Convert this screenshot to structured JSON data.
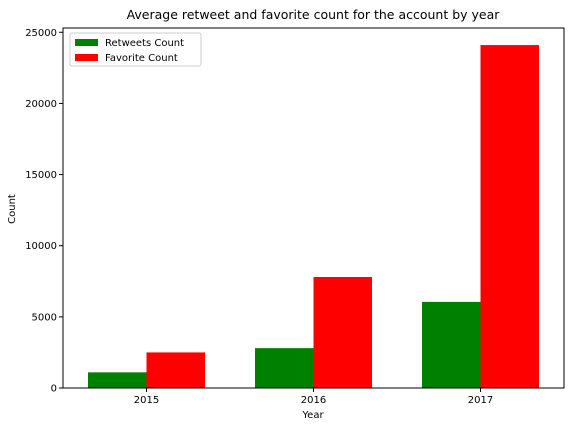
{
  "chart_data": {
    "type": "bar",
    "title": "Average retweet and favorite count for the account by year",
    "xlabel": "Year",
    "ylabel": "Count",
    "categories": [
      "2015",
      "2016",
      "2017"
    ],
    "series": [
      {
        "name": "Retweets Count",
        "color": "#008000",
        "values": [
          1100,
          2800,
          6050
        ]
      },
      {
        "name": "Favorite Count",
        "color": "#ff0000",
        "values": [
          2500,
          7800,
          24100
        ]
      }
    ],
    "ylim": [
      0,
      25300
    ],
    "yticks": [
      0,
      5000,
      10000,
      15000,
      20000,
      25000
    ],
    "legend": "top-left",
    "grid": false
  }
}
